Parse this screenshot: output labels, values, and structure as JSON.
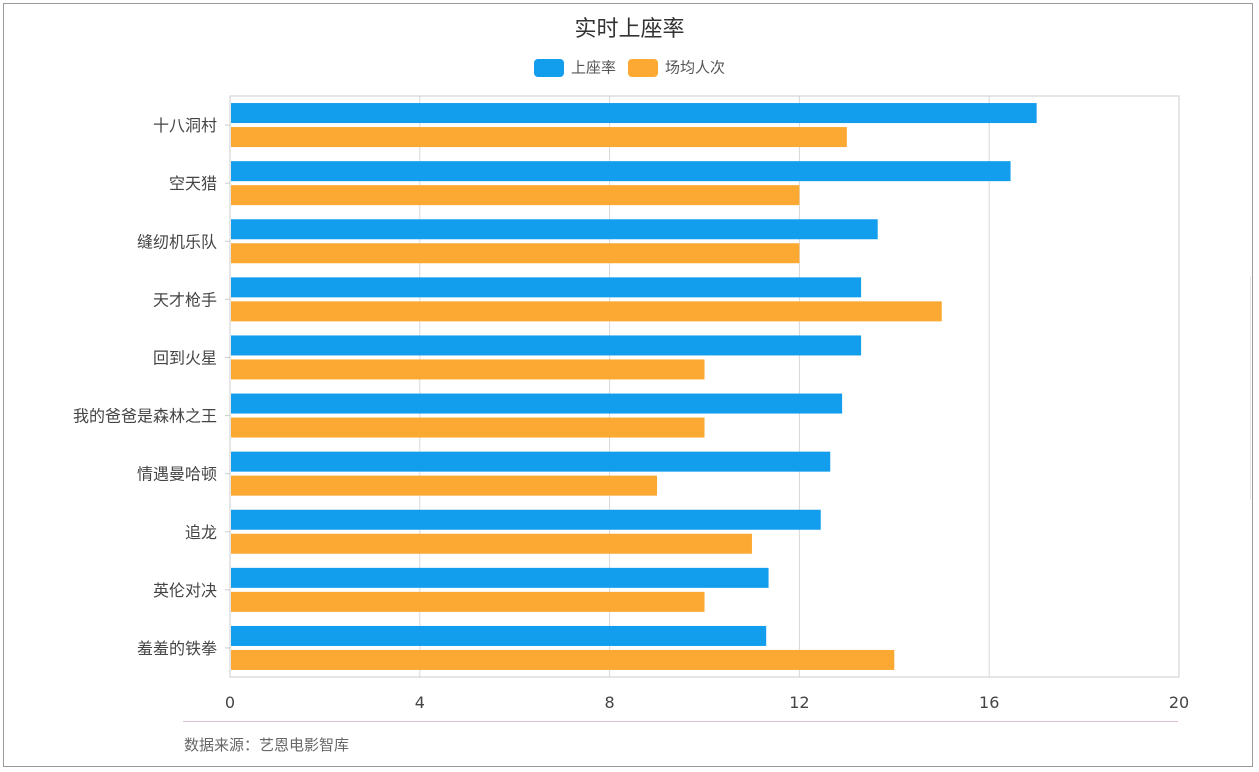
{
  "title": "实时上座率",
  "legend": [
    {
      "name": "上座率",
      "color": "#139ded"
    },
    {
      "name": "场均人次",
      "color": "#fba932"
    }
  ],
  "source": "数据来源：艺恩电影智库",
  "chart_data": {
    "type": "bar",
    "orientation": "horizontal",
    "title": "实时上座率",
    "categories": [
      "十八洞村",
      "空天猎",
      "缝纫机乐队",
      "天才枪手",
      "回到火星",
      "我的爸爸是森林之王",
      "情遇曼哈顿",
      "追龙",
      "英伦对决",
      "羞羞的铁拳"
    ],
    "series": [
      {
        "name": "上座率",
        "color": "#139ded",
        "values": [
          17.0,
          16.45,
          13.65,
          13.3,
          13.3,
          12.9,
          12.65,
          12.45,
          11.35,
          11.3
        ]
      },
      {
        "name": "场均人次",
        "color": "#fba932",
        "values": [
          13,
          12,
          12,
          15,
          10,
          10,
          9,
          11,
          10,
          14
        ]
      }
    ],
    "xlim": [
      0,
      20
    ],
    "xticks": [
      "0",
      "4",
      "8",
      "12",
      "16",
      "20"
    ],
    "grid": true,
    "legend_position": "top-center"
  }
}
